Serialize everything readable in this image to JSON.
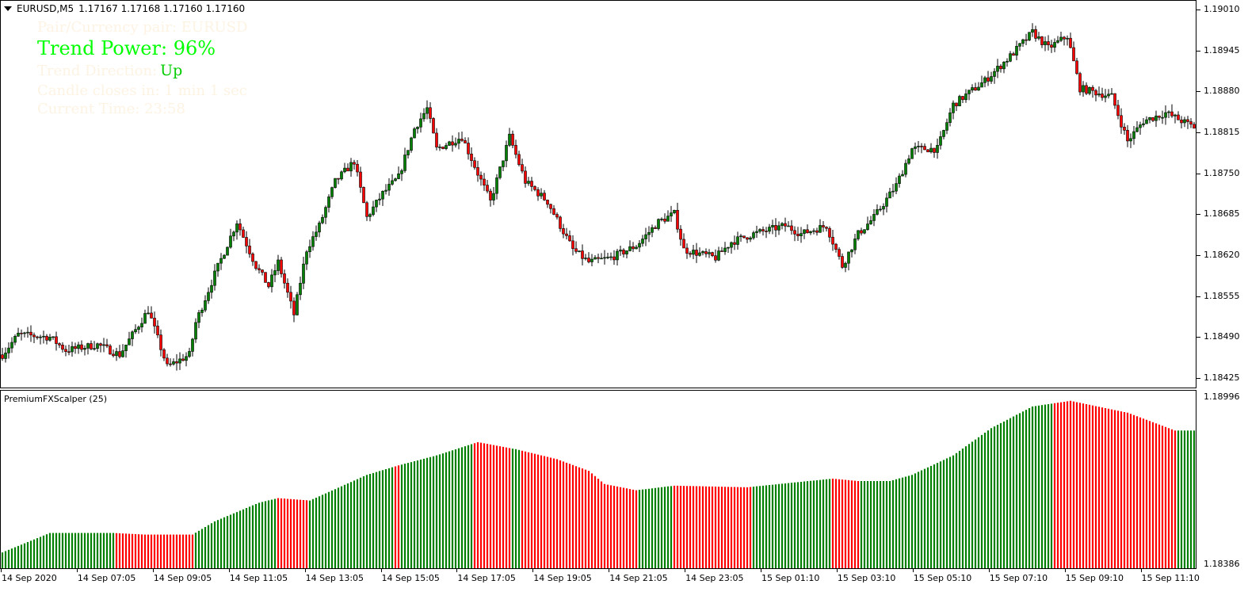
{
  "header": {
    "symbol": "EURUSD,M5",
    "prices": "1.17167 1.17168 1.17160 1.17160"
  },
  "overlay": {
    "pair": "Pair/Currency pair: EURUSD",
    "trend_power": "Trend Power: 96%",
    "trend_direction_label": "Trend Direction:",
    "trend_direction_value": "Up",
    "candle_closes": "Candle closes in: 1 min 1 sec",
    "current_time": "Current Time: 23:58"
  },
  "indicator": {
    "title": "PremiumFXScalper (25)",
    "scale_max": "1.18996",
    "scale_min": "1.18386"
  },
  "colors": {
    "bull": "#008000",
    "bear": "#ff0000",
    "overlay_green": "#00ff00"
  },
  "chart_data": {
    "type": "candlestick",
    "price_axis": [
      "1.19010",
      "1.18945",
      "1.18880",
      "1.18815",
      "1.18750",
      "1.18685",
      "1.18620",
      "1.18555",
      "1.18490",
      "1.18425"
    ],
    "price_range": [
      1.1841,
      1.19024
    ],
    "bar_count": 377,
    "close_keypoints": [
      [
        0,
        1.18462
      ],
      [
        5,
        1.18494
      ],
      [
        15,
        1.1849
      ],
      [
        20,
        1.18469
      ],
      [
        30,
        1.18478
      ],
      [
        37,
        1.18462
      ],
      [
        46,
        1.18533
      ],
      [
        52,
        1.18443
      ],
      [
        59,
        1.18462
      ],
      [
        61,
        1.18513
      ],
      [
        67,
        1.1859
      ],
      [
        74,
        1.18673
      ],
      [
        80,
        1.18603
      ],
      [
        84,
        1.18571
      ],
      [
        87,
        1.18609
      ],
      [
        92,
        1.18526
      ],
      [
        96,
        1.18629
      ],
      [
        100,
        1.18667
      ],
      [
        105,
        1.18737
      ],
      [
        111,
        1.18769
      ],
      [
        115,
        1.1868
      ],
      [
        120,
        1.18718
      ],
      [
        125,
        1.18744
      ],
      [
        130,
        1.18821
      ],
      [
        134,
        1.18853
      ],
      [
        137,
        1.18789
      ],
      [
        145,
        1.18808
      ],
      [
        150,
        1.1875
      ],
      [
        154,
        1.18705
      ],
      [
        160,
        1.18808
      ],
      [
        165,
        1.18737
      ],
      [
        172,
        1.18705
      ],
      [
        180,
        1.18629
      ],
      [
        185,
        1.18609
      ],
      [
        192,
        1.18616
      ],
      [
        200,
        1.18635
      ],
      [
        207,
        1.18673
      ],
      [
        212,
        1.18686
      ],
      [
        215,
        1.18629
      ],
      [
        225,
        1.18616
      ],
      [
        230,
        1.18641
      ],
      [
        237,
        1.18654
      ],
      [
        247,
        1.18667
      ],
      [
        252,
        1.18654
      ],
      [
        260,
        1.18667
      ],
      [
        265,
        1.18603
      ],
      [
        270,
        1.18654
      ],
      [
        275,
        1.1868
      ],
      [
        282,
        1.18731
      ],
      [
        287,
        1.18789
      ],
      [
        295,
        1.18789
      ],
      [
        300,
        1.18859
      ],
      [
        310,
        1.18897
      ],
      [
        318,
        1.18936
      ],
      [
        325,
        1.18974
      ],
      [
        330,
        1.18949
      ],
      [
        336,
        1.18968
      ],
      [
        340,
        1.18885
      ],
      [
        350,
        1.18872
      ],
      [
        355,
        1.18801
      ],
      [
        360,
        1.18833
      ],
      [
        367,
        1.18846
      ],
      [
        377,
        1.18821
      ]
    ],
    "indicator_range": [
      1.18386,
      1.18996
    ],
    "indicator_keypoints": [
      [
        0,
        1.18421
      ],
      [
        15,
        1.18493
      ],
      [
        35,
        1.18493
      ],
      [
        45,
        1.18487
      ],
      [
        60,
        1.18487
      ],
      [
        67,
        1.18536
      ],
      [
        81,
        1.18605
      ],
      [
        87,
        1.18622
      ],
      [
        97,
        1.18613
      ],
      [
        115,
        1.18708
      ],
      [
        125,
        1.18743
      ],
      [
        137,
        1.1878
      ],
      [
        150,
        1.18829
      ],
      [
        162,
        1.18803
      ],
      [
        175,
        1.18766
      ],
      [
        185,
        1.18723
      ],
      [
        190,
        1.18674
      ],
      [
        200,
        1.18651
      ],
      [
        212,
        1.18668
      ],
      [
        235,
        1.18662
      ],
      [
        250,
        1.1868
      ],
      [
        262,
        1.18694
      ],
      [
        270,
        1.18685
      ],
      [
        280,
        1.18685
      ],
      [
        287,
        1.18708
      ],
      [
        300,
        1.1878
      ],
      [
        312,
        1.18881
      ],
      [
        325,
        1.18961
      ],
      [
        337,
        1.18982
      ],
      [
        355,
        1.18938
      ],
      [
        370,
        1.18872
      ],
      [
        377,
        1.18872
      ]
    ],
    "indicator_red_segments": [
      [
        36,
        50
      ],
      [
        51,
        60
      ],
      [
        87,
        96
      ],
      [
        124,
        125
      ],
      [
        149,
        160
      ],
      [
        164,
        200
      ],
      [
        212,
        236
      ],
      [
        262,
        270
      ],
      [
        332,
        337
      ],
      [
        338,
        370
      ]
    ],
    "time_labels": [
      "14 Sep 2020",
      "14 Sep 07:05",
      "14 Sep 09:05",
      "14 Sep 11:05",
      "14 Sep 13:05",
      "14 Sep 15:05",
      "14 Sep 17:05",
      "14 Sep 19:05",
      "14 Sep 21:05",
      "14 Sep 23:05",
      "15 Sep 01:10",
      "15 Sep 03:10",
      "15 Sep 05:10",
      "15 Sep 07:10",
      "15 Sep 09:10",
      "15 Sep 11:10"
    ]
  }
}
